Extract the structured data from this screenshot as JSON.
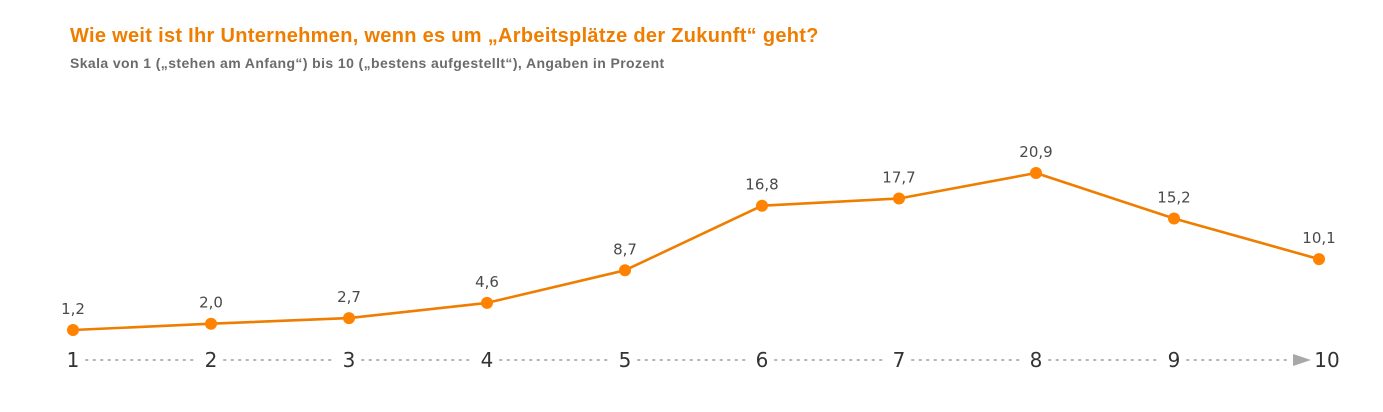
{
  "title": "Wie weit ist Ihr Unternehmen, wenn es um „Arbeitsplätze der Zukunft“ geht?",
  "subtitle": "Skala von 1 („stehen am Anfang“) bis 10 („bestens aufgestellt“), Angaben in Prozent",
  "colors": {
    "accent": "#ef7d00",
    "text": "#4a4a4a",
    "axis_dots": "#b5b5b5"
  },
  "chart_data": {
    "type": "line",
    "title": "Wie weit ist Ihr Unternehmen, wenn es um „Arbeitsplätze der Zukunft“ geht?",
    "subtitle": "Skala von 1 („stehen am Anfang“) bis 10 („bestens aufgestellt“), Angaben in Prozent",
    "xlabel": "",
    "ylabel": "",
    "categories": [
      "1",
      "2",
      "3",
      "4",
      "5",
      "6",
      "7",
      "8",
      "9",
      "10"
    ],
    "values": [
      1.2,
      2.0,
      2.7,
      4.6,
      8.7,
      16.8,
      17.7,
      20.9,
      15.2,
      10.1
    ],
    "data_labels": [
      "1,2",
      "2,0",
      "2,7",
      "4,6",
      "8,7",
      "16,8",
      "17,7",
      "20,9",
      "15,2",
      "10,1"
    ],
    "ylim": [
      0,
      22
    ],
    "grid": false,
    "legend": "none",
    "x_axis_style": "dotted-arrow"
  }
}
